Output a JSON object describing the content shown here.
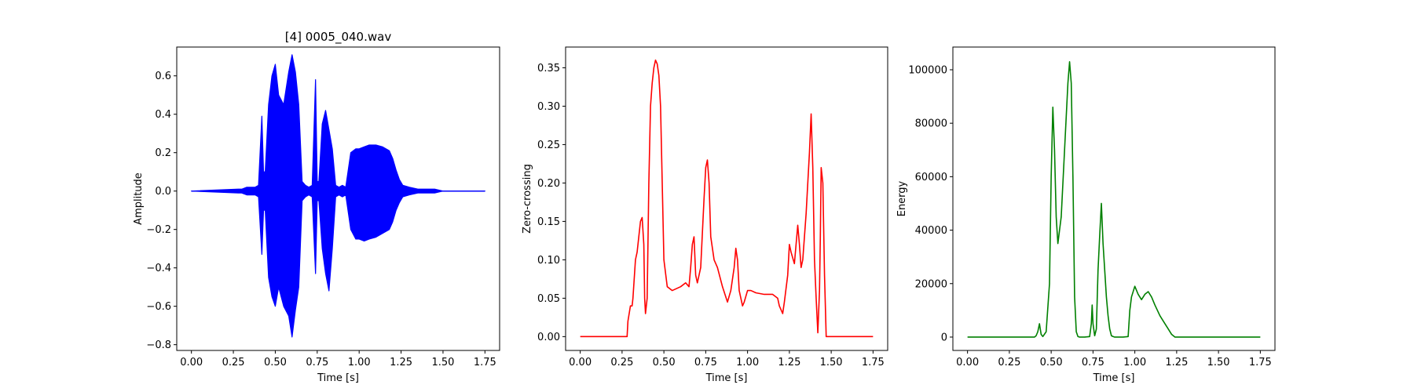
{
  "chart_data": [
    {
      "type": "line",
      "title": "[4] 0005_040.wav",
      "xlabel": "Time [s]",
      "ylabel": "Amplitude",
      "color": "#0000ff",
      "xlim": [
        -0.0875,
        1.8375
      ],
      "ylim": [
        -0.83,
        0.75
      ],
      "xticks": [
        {
          "value": 0.0,
          "label": "0.00"
        },
        {
          "value": 0.25,
          "label": "0.25"
        },
        {
          "value": 0.5,
          "label": "0.50"
        },
        {
          "value": 0.75,
          "label": "0.75"
        },
        {
          "value": 1.0,
          "label": "1.00"
        },
        {
          "value": 1.25,
          "label": "1.25"
        },
        {
          "value": 1.5,
          "label": "1.50"
        },
        {
          "value": 1.75,
          "label": "1.75"
        }
      ],
      "yticks": [
        {
          "value": 0.6,
          "label": "0.6"
        },
        {
          "value": 0.4,
          "label": "0.4"
        },
        {
          "value": 0.2,
          "label": "0.2"
        },
        {
          "value": 0.0,
          "label": "0.0"
        },
        {
          "value": -0.2,
          "label": "−0.2"
        },
        {
          "value": -0.4,
          "label": "−0.4"
        },
        {
          "value": -0.6,
          "label": "−0.6"
        },
        {
          "value": -0.8,
          "label": "−0.8"
        }
      ],
      "series": [
        {
          "x": [
            0.0,
            0.28,
            0.3,
            0.33,
            0.35,
            0.38,
            0.4,
            0.42,
            0.43,
            0.44,
            0.46,
            0.48,
            0.5,
            0.52,
            0.55,
            0.58,
            0.6,
            0.62,
            0.64,
            0.66,
            0.68,
            0.7,
            0.72,
            0.74,
            0.75,
            0.76,
            0.78,
            0.8,
            0.82,
            0.84,
            0.86,
            0.88,
            0.9,
            0.92,
            0.95,
            0.98,
            1.0,
            1.03,
            1.06,
            1.1,
            1.14,
            1.18,
            1.2,
            1.22,
            1.24,
            1.26,
            1.3,
            1.35,
            1.4,
            1.45,
            1.5,
            1.75
          ],
          "upper": [
            0.0,
            0.01,
            0.01,
            0.02,
            0.02,
            0.02,
            0.03,
            0.39,
            0.1,
            0.1,
            0.45,
            0.6,
            0.66,
            0.5,
            0.45,
            0.62,
            0.71,
            0.62,
            0.45,
            0.05,
            0.03,
            0.02,
            0.03,
            0.58,
            0.05,
            0.05,
            0.35,
            0.42,
            0.32,
            0.22,
            0.03,
            0.02,
            0.03,
            0.02,
            0.2,
            0.22,
            0.22,
            0.23,
            0.24,
            0.24,
            0.23,
            0.21,
            0.17,
            0.11,
            0.06,
            0.03,
            0.02,
            0.01,
            0.01,
            0.01,
            0.0,
            0.0
          ],
          "lower": [
            0.0,
            -0.01,
            -0.01,
            -0.02,
            -0.02,
            -0.02,
            -0.03,
            -0.33,
            -0.1,
            -0.1,
            -0.45,
            -0.55,
            -0.6,
            -0.5,
            -0.6,
            -0.65,
            -0.76,
            -0.62,
            -0.5,
            -0.05,
            -0.03,
            -0.02,
            -0.03,
            -0.43,
            -0.05,
            -0.05,
            -0.3,
            -0.43,
            -0.52,
            -0.3,
            -0.03,
            -0.02,
            -0.03,
            -0.02,
            -0.2,
            -0.25,
            -0.25,
            -0.26,
            -0.25,
            -0.24,
            -0.22,
            -0.2,
            -0.16,
            -0.1,
            -0.06,
            -0.03,
            -0.02,
            -0.01,
            -0.01,
            -0.01,
            0.0,
            0.0
          ]
        }
      ]
    },
    {
      "type": "line",
      "title": "",
      "xlabel": "Time [s]",
      "ylabel": "Zero-crossing",
      "color": "#ff0000",
      "xlim": [
        -0.0875,
        1.8375
      ],
      "ylim": [
        -0.018,
        0.377
      ],
      "xticks": [
        {
          "value": 0.0,
          "label": "0.00"
        },
        {
          "value": 0.25,
          "label": "0.25"
        },
        {
          "value": 0.5,
          "label": "0.50"
        },
        {
          "value": 0.75,
          "label": "0.75"
        },
        {
          "value": 1.0,
          "label": "1.00"
        },
        {
          "value": 1.25,
          "label": "1.25"
        },
        {
          "value": 1.5,
          "label": "1.50"
        },
        {
          "value": 1.75,
          "label": "1.75"
        }
      ],
      "yticks": [
        {
          "value": 0.0,
          "label": "0.00"
        },
        {
          "value": 0.05,
          "label": "0.05"
        },
        {
          "value": 0.1,
          "label": "0.10"
        },
        {
          "value": 0.15,
          "label": "0.15"
        },
        {
          "value": 0.2,
          "label": "0.20"
        },
        {
          "value": 0.25,
          "label": "0.25"
        },
        {
          "value": 0.3,
          "label": "0.30"
        },
        {
          "value": 0.35,
          "label": "0.35"
        }
      ],
      "series": [
        {
          "x": [
            0.0,
            0.28,
            0.285,
            0.3,
            0.31,
            0.315,
            0.33,
            0.34,
            0.35,
            0.36,
            0.37,
            0.38,
            0.385,
            0.39,
            0.4,
            0.41,
            0.42,
            0.43,
            0.44,
            0.45,
            0.46,
            0.47,
            0.48,
            0.5,
            0.52,
            0.55,
            0.6,
            0.63,
            0.65,
            0.66,
            0.67,
            0.68,
            0.69,
            0.7,
            0.72,
            0.74,
            0.75,
            0.76,
            0.77,
            0.78,
            0.8,
            0.82,
            0.85,
            0.88,
            0.9,
            0.92,
            0.93,
            0.94,
            0.95,
            0.97,
            0.98,
            1.0,
            1.02,
            1.05,
            1.1,
            1.15,
            1.18,
            1.19,
            1.2,
            1.21,
            1.22,
            1.24,
            1.25,
            1.26,
            1.28,
            1.3,
            1.31,
            1.32,
            1.33,
            1.35,
            1.37,
            1.38,
            1.39,
            1.4,
            1.41,
            1.42,
            1.43,
            1.435,
            1.44,
            1.45,
            1.46,
            1.47,
            1.75
          ],
          "y": [
            0.0,
            0.0,
            0.02,
            0.04,
            0.04,
            0.05,
            0.1,
            0.11,
            0.13,
            0.15,
            0.155,
            0.12,
            0.05,
            0.03,
            0.05,
            0.2,
            0.3,
            0.33,
            0.35,
            0.36,
            0.355,
            0.34,
            0.3,
            0.1,
            0.065,
            0.06,
            0.065,
            0.07,
            0.065,
            0.09,
            0.12,
            0.13,
            0.08,
            0.07,
            0.09,
            0.18,
            0.22,
            0.23,
            0.2,
            0.13,
            0.1,
            0.09,
            0.065,
            0.045,
            0.06,
            0.09,
            0.115,
            0.1,
            0.06,
            0.04,
            0.045,
            0.06,
            0.06,
            0.057,
            0.055,
            0.055,
            0.05,
            0.04,
            0.035,
            0.03,
            0.045,
            0.08,
            0.12,
            0.11,
            0.095,
            0.145,
            0.12,
            0.09,
            0.1,
            0.16,
            0.24,
            0.29,
            0.22,
            0.1,
            0.05,
            0.005,
            0.06,
            0.13,
            0.22,
            0.2,
            0.08,
            0.0,
            0.0
          ]
        }
      ]
    },
    {
      "type": "line",
      "title": "",
      "xlabel": "Time [s]",
      "ylabel": "Energy",
      "color": "#008000",
      "xlim": [
        -0.0875,
        1.8375
      ],
      "ylim": [
        -5000,
        108500
      ],
      "xticks": [
        {
          "value": 0.0,
          "label": "0.00"
        },
        {
          "value": 0.25,
          "label": "0.25"
        },
        {
          "value": 0.5,
          "label": "0.50"
        },
        {
          "value": 0.75,
          "label": "0.75"
        },
        {
          "value": 1.0,
          "label": "1.00"
        },
        {
          "value": 1.25,
          "label": "1.25"
        },
        {
          "value": 1.5,
          "label": "1.50"
        },
        {
          "value": 1.75,
          "label": "1.75"
        }
      ],
      "yticks": [
        {
          "value": 0,
          "label": "0"
        },
        {
          "value": 20000,
          "label": "20000"
        },
        {
          "value": 40000,
          "label": "40000"
        },
        {
          "value": 60000,
          "label": "60000"
        },
        {
          "value": 80000,
          "label": "80000"
        },
        {
          "value": 100000,
          "label": "100000"
        }
      ],
      "series": [
        {
          "x": [
            0.0,
            0.4,
            0.41,
            0.42,
            0.43,
            0.44,
            0.45,
            0.47,
            0.49,
            0.5,
            0.51,
            0.52,
            0.53,
            0.54,
            0.56,
            0.58,
            0.6,
            0.61,
            0.62,
            0.63,
            0.64,
            0.65,
            0.66,
            0.67,
            0.68,
            0.7,
            0.73,
            0.74,
            0.745,
            0.75,
            0.76,
            0.77,
            0.78,
            0.79,
            0.8,
            0.81,
            0.82,
            0.83,
            0.84,
            0.85,
            0.86,
            0.87,
            0.88,
            0.9,
            0.93,
            0.96,
            0.97,
            0.98,
            1.0,
            1.02,
            1.04,
            1.06,
            1.08,
            1.1,
            1.12,
            1.15,
            1.18,
            1.2,
            1.22,
            1.24,
            1.75
          ],
          "y": [
            0,
            0,
            500,
            2000,
            5000,
            1000,
            200,
            2000,
            20000,
            60000,
            86000,
            70000,
            45000,
            35000,
            45000,
            70000,
            95000,
            103000,
            95000,
            60000,
            15000,
            2000,
            200,
            0,
            0,
            0,
            200,
            5000,
            12000,
            5000,
            500,
            3000,
            25000,
            38000,
            50000,
            35000,
            25000,
            15000,
            8000,
            3000,
            500,
            200,
            0,
            0,
            0,
            200,
            10000,
            15000,
            19000,
            16000,
            14000,
            16000,
            17000,
            15000,
            12000,
            8000,
            5000,
            3000,
            1000,
            0,
            0
          ]
        }
      ]
    }
  ]
}
